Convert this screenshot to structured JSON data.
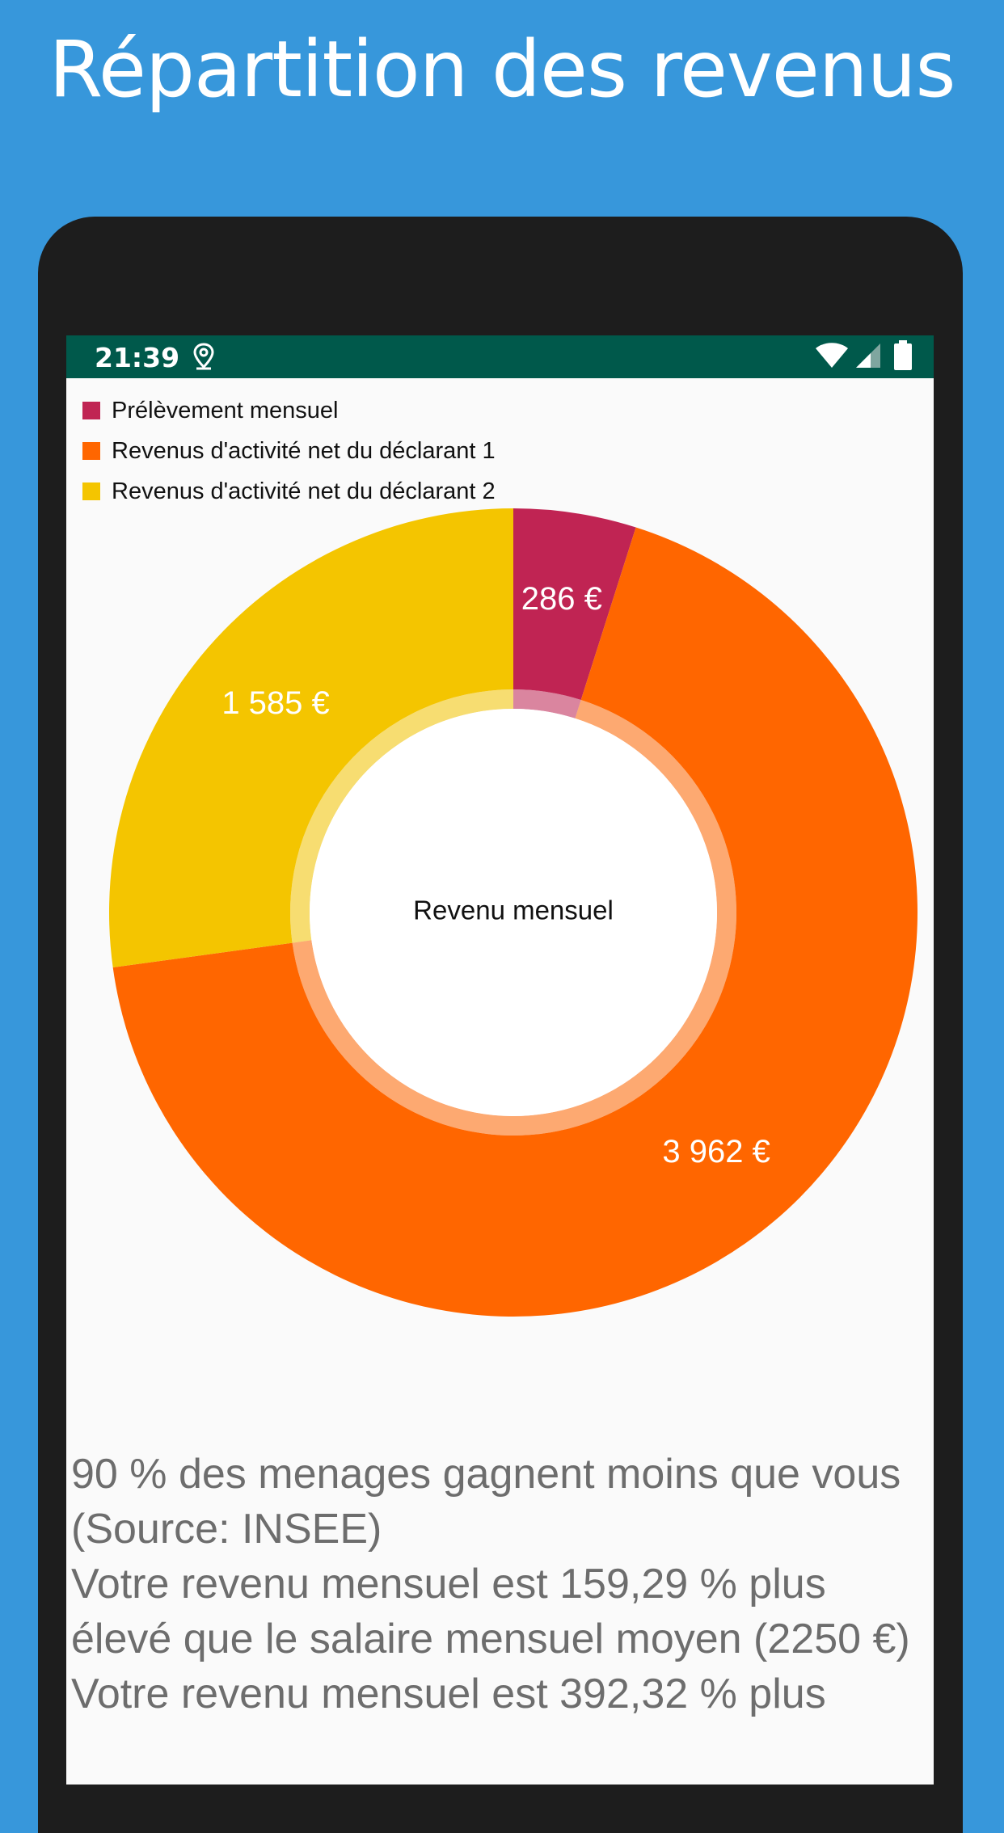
{
  "promo": {
    "title": "Répartition des revenus"
  },
  "status_bar": {
    "time": "21:39",
    "icons": [
      "location-icon",
      "wifi-icon",
      "signal-icon",
      "battery-icon"
    ]
  },
  "colors": {
    "background": "#3797db",
    "status_bar": "#00594b",
    "prelevement": "#c02453",
    "declarant1": "#ff6600",
    "declarant2": "#f4c500"
  },
  "chart_data": {
    "type": "pie",
    "donut": true,
    "center_label": "Revenu mensuel",
    "legend_position": "top-left",
    "slices": [
      {
        "name": "Prélèvement mensuel",
        "value": 286,
        "label": "286 €",
        "color": "#c02453"
      },
      {
        "name": "Revenus d'activité net du déclarant 1",
        "value": 3962,
        "label": "3 962 €",
        "color": "#ff6600"
      },
      {
        "name": "Revenus d'activité net du déclarant 2",
        "value": 1585,
        "label": "1 585 €",
        "color": "#f4c500"
      }
    ]
  },
  "info": {
    "lines": [
      "90 % des menages gagnent moins que vous (Source: INSEE)",
      "Votre revenu mensuel est 159,29 % plus élevé que le salaire mensuel moyen (2250 €)",
      "Votre revenu mensuel est 392,32 % plus"
    ]
  }
}
